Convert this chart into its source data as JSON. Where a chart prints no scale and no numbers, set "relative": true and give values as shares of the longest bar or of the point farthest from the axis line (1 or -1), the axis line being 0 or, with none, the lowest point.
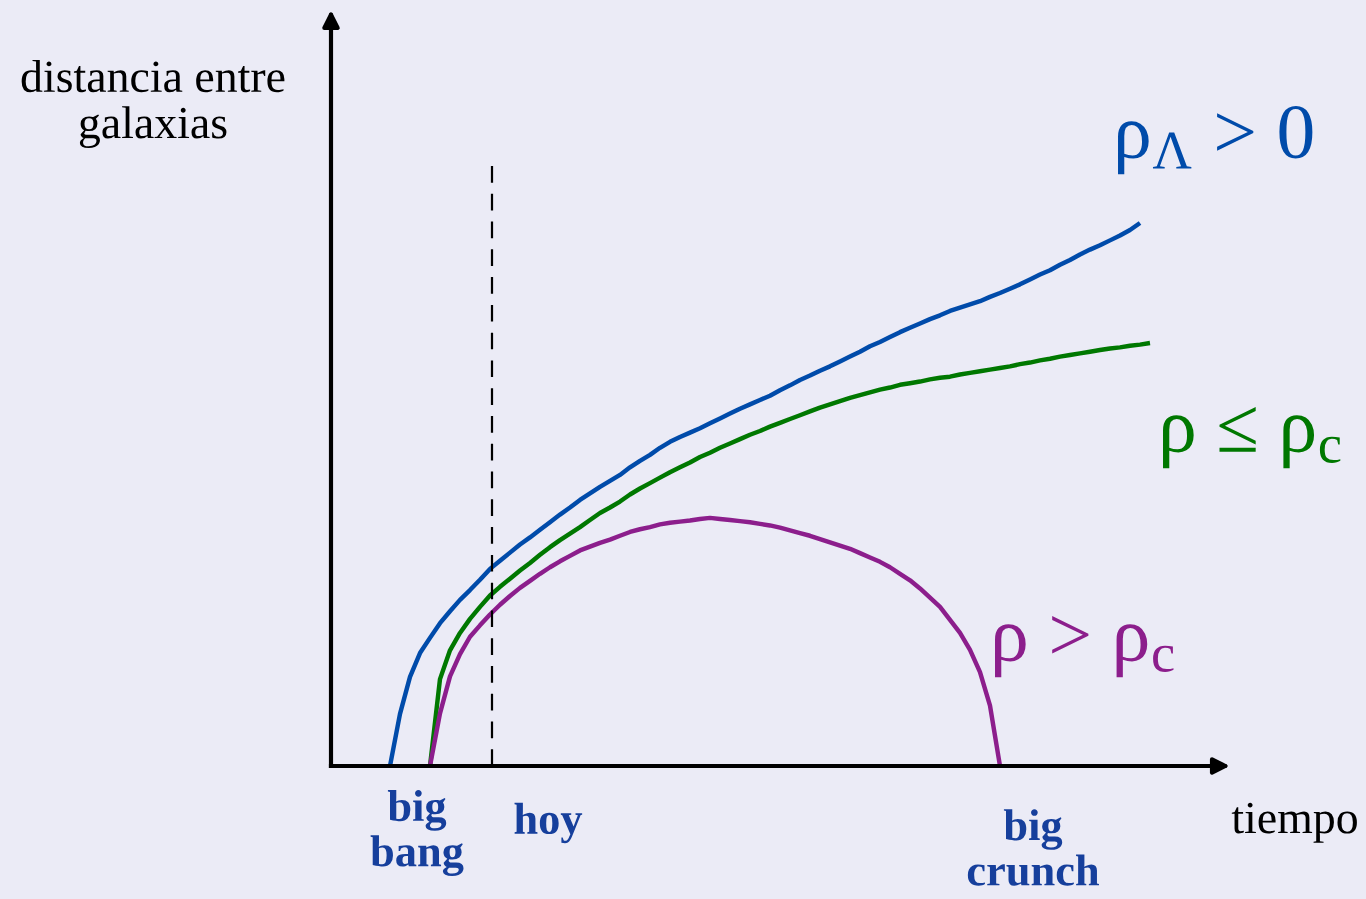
{
  "chart_data": {
    "type": "line",
    "relative": true,
    "xlabel": "tiempo",
    "ylabel": "distancia entre\ngalaxias",
    "categories": [
      null,
      null,
      null,
      null,
      null,
      null,
      null,
      null,
      null,
      null,
      null,
      null,
      null,
      null,
      null,
      null,
      null,
      null,
      null,
      null,
      null,
      null,
      null,
      null,
      null,
      null,
      null,
      null,
      null,
      null,
      null,
      null,
      null,
      null,
      null,
      null,
      null,
      null,
      null,
      null,
      null,
      null,
      null,
      null,
      null,
      null,
      null,
      null,
      null,
      null,
      null,
      null,
      null,
      null,
      null,
      null,
      null,
      null,
      null,
      null,
      null,
      null,
      null,
      null,
      null,
      null,
      null,
      null,
      null,
      null,
      null,
      null,
      null,
      null,
      null,
      null,
      null
    ],
    "series": [
      {
        "name": "ρ$_{Λ}$ > 0",
        "color": "#004baa",
        "values": [
          0,
          0.096,
          0.164,
          0.208,
          0.236,
          0.263,
          0.285,
          0.306,
          0.324,
          0.343,
          0.363,
          0.378,
          0.393,
          0.408,
          0.421,
          0.435,
          0.449,
          0.463,
          0.476,
          0.49,
          0.502,
          0.514,
          0.525,
          0.536,
          0.55,
          0.562,
          0.573,
          0.586,
          0.597,
          0.606,
          0.614,
          0.622,
          0.631,
          0.64,
          0.649,
          0.658,
          0.666,
          0.674,
          0.682,
          0.692,
          0.701,
          0.711,
          0.719,
          0.728,
          0.736,
          0.745,
          0.754,
          0.763,
          0.773,
          0.781,
          0.79,
          0.799,
          0.807,
          0.815,
          0.823,
          0.83,
          0.838,
          0.844,
          0.85,
          0.856,
          0.864,
          0.871,
          0.879,
          0.887,
          0.896,
          0.905,
          0.913,
          0.923,
          0.932,
          0.942,
          0.951,
          0.959,
          0.968,
          0.977,
          0.987,
          1.0,
          null
        ]
      },
      {
        "name": "ρ ≤ ρ$_{c}$",
        "color": "#007800",
        "values": [
          null,
          null,
          null,
          null,
          0,
          0.16,
          0.213,
          0.245,
          0.271,
          0.293,
          0.314,
          0.33,
          0.345,
          0.36,
          0.374,
          0.389,
          0.403,
          0.416,
          0.428,
          0.44,
          0.453,
          0.466,
          0.476,
          0.487,
          0.5,
          0.511,
          0.521,
          0.531,
          0.541,
          0.55,
          0.559,
          0.569,
          0.577,
          0.586,
          0.594,
          0.602,
          0.61,
          0.617,
          0.625,
          0.632,
          0.639,
          0.646,
          0.653,
          0.66,
          0.666,
          0.672,
          0.678,
          0.683,
          0.688,
          0.693,
          0.697,
          0.702,
          0.705,
          0.708,
          0.712,
          0.715,
          0.717,
          0.721,
          0.724,
          0.727,
          0.73,
          0.733,
          0.736,
          0.74,
          0.743,
          0.747,
          0.75,
          0.754,
          0.757,
          0.76,
          0.763,
          0.766,
          0.769,
          0.771,
          0.774,
          0.776,
          0.779
        ]
      },
      {
        "name": "ρ > ρ$_{c}$",
        "color": "#8c1e8c",
        "values": [
          null,
          null,
          null,
          null,
          0,
          0.097,
          0.165,
          0.206,
          0.238,
          0.259,
          0.279,
          0.297,
          0.313,
          0.328,
          0.341,
          0.354,
          0.366,
          0.377,
          0.387,
          0.397,
          0.404,
          0.411,
          0.417,
          0.424,
          0.431,
          0.436,
          0.44,
          0.445,
          0.448,
          0.45,
          0.452,
          0.455,
          0.457,
          0.455,
          0.453,
          0.451,
          0.449,
          0.446,
          0.443,
          0.439,
          0.434,
          0.429,
          0.424,
          0.418,
          0.412,
          0.406,
          0.4,
          0.392,
          0.384,
          0.376,
          0.366,
          0.354,
          0.342,
          0.327,
          0.31,
          0.293,
          0.269,
          0.245,
          0.214,
          0.173,
          0.111,
          0,
          null,
          null,
          null,
          null,
          null,
          null,
          null,
          null,
          null,
          null,
          null,
          null,
          null,
          null,
          null
        ]
      }
    ],
    "annotations": [
      "big\nbang",
      "hoy",
      "big\ncrunch"
    ]
  }
}
